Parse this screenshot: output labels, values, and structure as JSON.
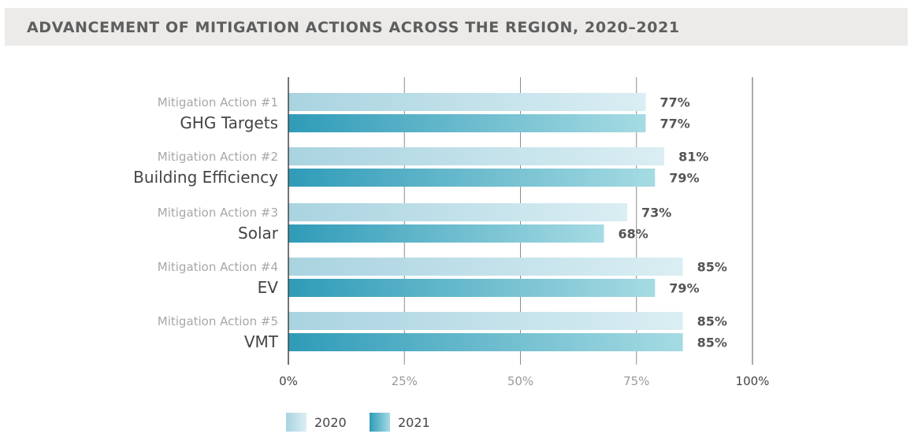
{
  "header": {
    "title": "ADVANCEMENT OF MITIGATION ACTIONS ACROSS THE REGION, 2020–2021"
  },
  "chart_data": {
    "type": "bar",
    "orientation": "horizontal",
    "categories": [
      {
        "action": "Mitigation Action #1",
        "name": "GHG Targets"
      },
      {
        "action": "Mitigation Action #2",
        "name": "Building Efficiency"
      },
      {
        "action": "Mitigation Action #3",
        "name": "Solar"
      },
      {
        "action": "Mitigation Action #4",
        "name": "EV"
      },
      {
        "action": "Mitigation Action #5",
        "name": "VMT"
      }
    ],
    "series": [
      {
        "name": "2020",
        "values": [
          77,
          81,
          73,
          85,
          85
        ],
        "labels": [
          "77%",
          "81%",
          "73%",
          "85%",
          "85%"
        ],
        "color_start": "#a9d3e0",
        "color_end": "#daeef3"
      },
      {
        "name": "2021",
        "values": [
          77,
          79,
          68,
          79,
          85
        ],
        "labels": [
          "77%",
          "79%",
          "68%",
          "79%",
          "85%"
        ],
        "color_start": "#2f9bb8",
        "color_end": "#a6dbe3"
      }
    ],
    "xlim": [
      0,
      100
    ],
    "xticks": [
      0,
      25,
      50,
      75,
      100
    ],
    "xtick_labels": [
      "0%",
      "25%",
      "50%",
      "75%",
      "100%"
    ],
    "grid": true,
    "legend_position": "bottom-left"
  }
}
